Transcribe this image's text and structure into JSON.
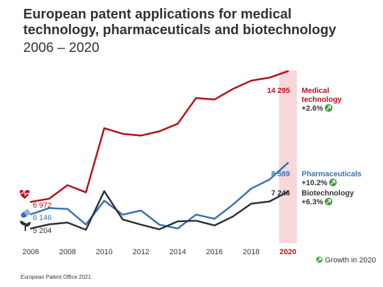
{
  "header": {
    "title": "European patent applications for medical technology, pharmaceuticals and biotechnology",
    "subtitle": "2006 – 2020"
  },
  "footer": {
    "source": "European Patent Office 2021"
  },
  "legend": {
    "growth_label": "Growth in 2020"
  },
  "colors": {
    "medical": "#b5121b",
    "pharma": "#3a73b0",
    "biotech": "#2e3338",
    "highlight": "#f8d7da",
    "growth_icon": "#3a9b3a"
  },
  "icons": {
    "medical": "heart-pulse-icon",
    "pharma": "pill-icon",
    "biotech": "sprout-icon",
    "growth": "arrow-up-right-circle-icon"
  },
  "chart_data": {
    "type": "line",
    "x": [
      2006,
      2007,
      2008,
      2009,
      2010,
      2011,
      2012,
      2013,
      2014,
      2015,
      2016,
      2017,
      2018,
      2019,
      2020
    ],
    "x_tick_labels": [
      "2006",
      "2008",
      "2010",
      "2012",
      "2014",
      "2016",
      "2018",
      "2020"
    ],
    "highlight_year": 2020,
    "ylim": [
      4500,
      15000
    ],
    "grid": false,
    "series": [
      {
        "key": "medical",
        "name_lines": [
          "Medical",
          "technology"
        ],
        "growth": "+2.6%",
        "start_label": "6 972",
        "end_label": "14 295",
        "values": [
          6972,
          7180,
          8080,
          7600,
          11850,
          11480,
          11360,
          11640,
          12150,
          13850,
          13750,
          14450,
          15000,
          15200,
          15630
        ]
      },
      {
        "key": "pharma",
        "name_lines": [
          "Pharmaceuticals"
        ],
        "growth": "+10.2%",
        "start_label": "6 146",
        "end_label": "8 589",
        "values": [
          6146,
          6560,
          6500,
          5470,
          7050,
          6120,
          6400,
          5460,
          5210,
          6130,
          5850,
          6780,
          7850,
          8450,
          9550
        ]
      },
      {
        "key": "biotech",
        "name_lines": [
          "Biotechnology"
        ],
        "growth": "+6.3%",
        "start_label": "5 204",
        "end_label": "7 246",
        "values": [
          5204,
          5480,
          5600,
          5120,
          7680,
          5810,
          5460,
          5150,
          5680,
          5720,
          5410,
          6000,
          6850,
          7000,
          7640
        ]
      }
    ]
  }
}
